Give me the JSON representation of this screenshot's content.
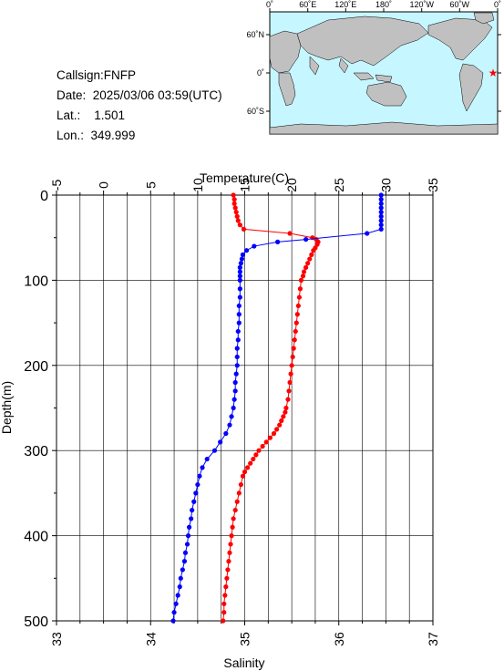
{
  "info": {
    "callsign": "Callsign:FNFP",
    "date": "Date:  2025/03/06 03:59(UTC)",
    "lat": "Lat.:    1.501",
    "lon": "Lon.:  349.999"
  },
  "map": {
    "top_labels": [
      "0˚",
      "60˚E",
      "120˚E",
      "180˚",
      "120˚W",
      "60˚W",
      "0˚"
    ],
    "lat_labels": [
      "60˚N",
      "0˚",
      "60˚S"
    ],
    "station": {
      "lon": 349.999,
      "lat": 1.501
    },
    "colors": {
      "ocean": "#c6f6ff",
      "land": "#c0c0c0",
      "marker": "#ff0000"
    }
  },
  "chart_data": {
    "type": "line",
    "title": "",
    "x_top_label": "Temperature(C)",
    "x_bottom_label": "Salinity",
    "y_label": "Depth(m)",
    "temperature_ticks": [
      "-5",
      "0",
      "5",
      "10",
      "15",
      "20",
      "25",
      "30",
      "35"
    ],
    "salinity_ticks": [
      "33",
      "34",
      "35",
      "36",
      "37"
    ],
    "depth_ticks": [
      "0",
      "100",
      "200",
      "300",
      "400",
      "500"
    ],
    "temperature_range": [
      -5,
      35
    ],
    "salinity_range": [
      33,
      37
    ],
    "depth_range": [
      0,
      500
    ],
    "grid": true,
    "colors": {
      "temperature": "#ff0000",
      "salinity": "#0000ff"
    },
    "series": [
      {
        "variable": "temperature",
        "depth": [
          0,
          5,
          10,
          15,
          20,
          25,
          30,
          35,
          40,
          45,
          50,
          52,
          55,
          58,
          62,
          65,
          70,
          75,
          80,
          85,
          90,
          95,
          100,
          110,
          120,
          130,
          140,
          150,
          160,
          170,
          180,
          190,
          200,
          210,
          220,
          230,
          240,
          250,
          255,
          260,
          265,
          270,
          275,
          280,
          285,
          290,
          295,
          300,
          305,
          310,
          315,
          320,
          325,
          330,
          340,
          350,
          360,
          370,
          380,
          390,
          400,
          410,
          420,
          430,
          440,
          450,
          460,
          470,
          480,
          490,
          500
        ],
        "values": [
          13.8,
          13.9,
          13.9,
          14.0,
          14.1,
          14.2,
          14.3,
          14.5,
          14.9,
          19.8,
          22.2,
          22.6,
          22.8,
          22.7,
          22.5,
          22.3,
          22.1,
          21.9,
          21.7,
          21.5,
          21.3,
          21.2,
          21.0,
          20.9,
          20.8,
          20.7,
          20.6,
          20.5,
          20.4,
          20.3,
          20.2,
          20.1,
          20.0,
          19.9,
          19.8,
          19.7,
          19.6,
          19.4,
          19.3,
          19.1,
          18.9,
          18.7,
          18.4,
          18.1,
          17.7,
          17.3,
          16.9,
          16.5,
          16.2,
          15.9,
          15.6,
          15.3,
          15.0,
          14.8,
          14.6,
          14.4,
          14.2,
          14.0,
          13.8,
          13.7,
          13.6,
          13.5,
          13.4,
          13.3,
          13.2,
          13.1,
          13.0,
          12.9,
          12.8,
          12.8,
          12.7
        ]
      },
      {
        "variable": "salinity",
        "depth": [
          0,
          5,
          10,
          15,
          20,
          25,
          30,
          35,
          40,
          45,
          52,
          55,
          60,
          65,
          70,
          75,
          80,
          85,
          90,
          95,
          100,
          110,
          120,
          130,
          140,
          150,
          160,
          170,
          180,
          190,
          200,
          210,
          220,
          230,
          240,
          250,
          260,
          270,
          280,
          290,
          300,
          310,
          320,
          330,
          340,
          350,
          360,
          370,
          380,
          390,
          400,
          410,
          420,
          430,
          440,
          450,
          460,
          470,
          480,
          490,
          500
        ],
        "values": [
          36.45,
          36.45,
          36.45,
          36.45,
          36.45,
          36.45,
          36.45,
          36.45,
          36.45,
          36.3,
          35.65,
          35.35,
          35.1,
          35.02,
          34.98,
          34.97,
          34.96,
          34.95,
          34.95,
          34.95,
          34.95,
          34.95,
          34.95,
          34.94,
          34.94,
          34.94,
          34.93,
          34.93,
          34.92,
          34.92,
          34.92,
          34.91,
          34.9,
          34.9,
          34.89,
          34.88,
          34.86,
          34.84,
          34.8,
          34.74,
          34.68,
          34.6,
          34.55,
          34.52,
          34.5,
          34.48,
          34.46,
          34.44,
          34.43,
          34.41,
          34.4,
          34.39,
          34.37,
          34.36,
          34.34,
          34.32,
          34.31,
          34.29,
          34.27,
          34.25,
          34.24
        ]
      }
    ]
  }
}
